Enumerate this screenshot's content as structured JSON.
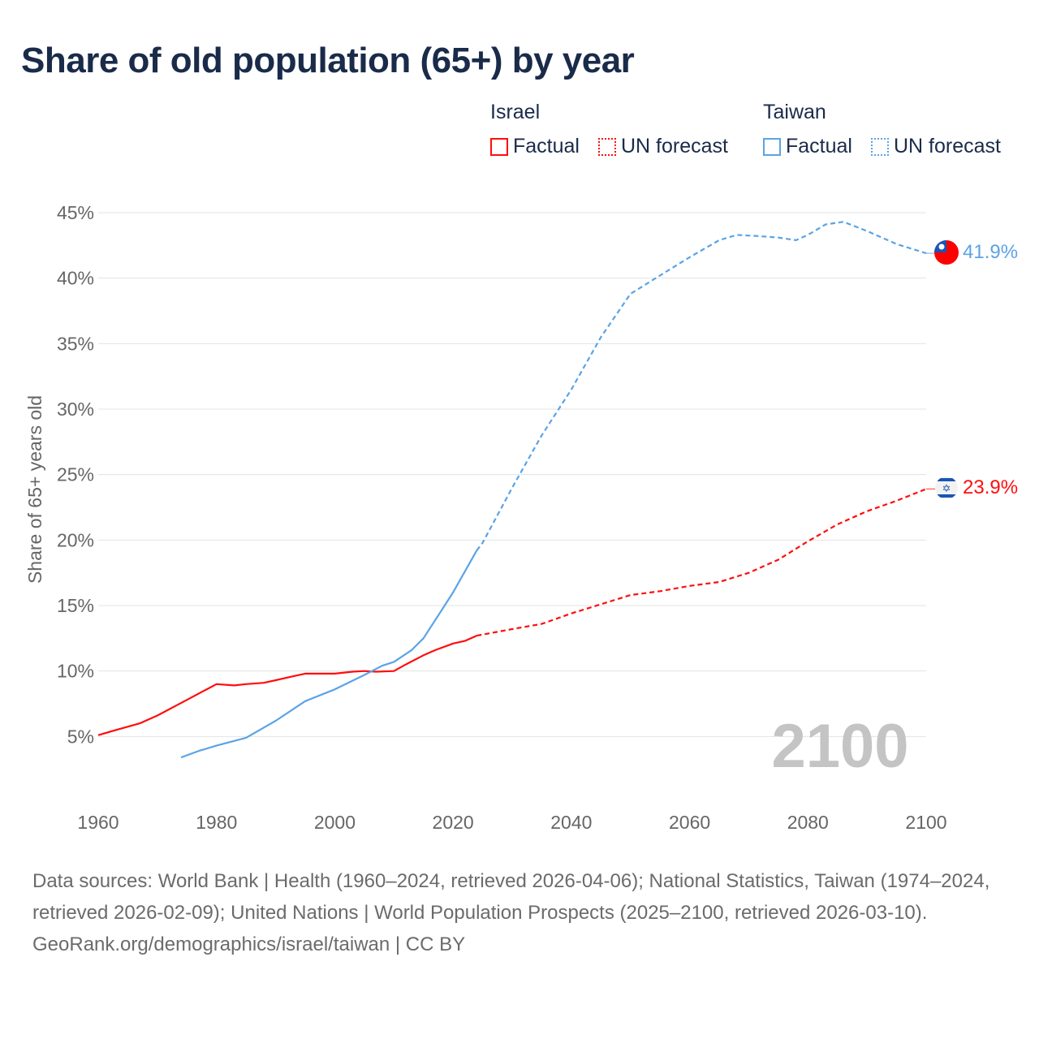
{
  "title": "Share of old population (65+) by year",
  "legend": {
    "groups": [
      {
        "name": "Israel",
        "factual": "Factual",
        "forecast": "UN forecast",
        "color": "#ff0d0d"
      },
      {
        "name": "Taiwan",
        "factual": "Factual",
        "forecast": "UN forecast",
        "color": "#5ba3e6"
      }
    ]
  },
  "chart_data": {
    "type": "line",
    "title": "Share of old population (65+) by year",
    "xlabel": "",
    "ylabel": "Share of 65+ years old",
    "xlim": [
      1960,
      2100
    ],
    "ylim": [
      0,
      45
    ],
    "x_ticks": [
      "1960",
      "1980",
      "2000",
      "2020",
      "2040",
      "2060",
      "2080",
      "2100"
    ],
    "y_ticks": [
      "5%",
      "10%",
      "15%",
      "20%",
      "25%",
      "30%",
      "35%",
      "40%",
      "45%"
    ],
    "grid": true,
    "year_label": "2100",
    "series": [
      {
        "name": "Israel",
        "color": "#ff0d0d",
        "end_label": "23.9%",
        "factual": {
          "x": [
            1960,
            1963,
            1967,
            1970,
            1975,
            1980,
            1983,
            1985,
            1988,
            1990,
            1993,
            1995,
            1998,
            2000,
            2003,
            2005,
            2007,
            2010,
            2012,
            2015,
            2017,
            2020,
            2022,
            2024
          ],
          "y": [
            5.1,
            5.5,
            6.0,
            6.6,
            7.8,
            9.0,
            8.9,
            9.0,
            9.1,
            9.3,
            9.6,
            9.8,
            9.8,
            9.8,
            9.95,
            10.0,
            9.95,
            10.0,
            10.5,
            11.2,
            11.6,
            12.1,
            12.3,
            12.7
          ]
        },
        "forecast": {
          "x": [
            2024,
            2030,
            2035,
            2040,
            2045,
            2050,
            2055,
            2060,
            2065,
            2070,
            2075,
            2080,
            2085,
            2090,
            2095,
            2100
          ],
          "y": [
            12.7,
            13.2,
            13.6,
            14.4,
            15.1,
            15.8,
            16.1,
            16.5,
            16.8,
            17.5,
            18.5,
            19.9,
            21.2,
            22.2,
            23.0,
            23.9
          ]
        }
      },
      {
        "name": "Taiwan",
        "color": "#5ba3e6",
        "end_label": "41.9%",
        "factual": {
          "x": [
            1974,
            1977,
            1980,
            1985,
            1990,
            1995,
            2000,
            2005,
            2008,
            2010,
            2013,
            2015,
            2018,
            2020,
            2022,
            2024
          ],
          "y": [
            3.4,
            3.9,
            4.3,
            4.9,
            6.2,
            7.7,
            8.6,
            9.7,
            10.4,
            10.7,
            11.6,
            12.5,
            14.6,
            16.0,
            17.6,
            19.2
          ]
        },
        "forecast": {
          "x": [
            2024,
            2025,
            2030,
            2035,
            2040,
            2045,
            2050,
            2055,
            2060,
            2065,
            2068,
            2072,
            2075,
            2078,
            2080,
            2083,
            2086,
            2090,
            2095,
            2100
          ],
          "y": [
            19.2,
            19.8,
            24.0,
            28.0,
            31.5,
            35.5,
            38.8,
            40.2,
            41.6,
            42.9,
            43.3,
            43.2,
            43.1,
            42.9,
            43.3,
            44.1,
            44.3,
            43.6,
            42.6,
            41.9
          ]
        }
      }
    ]
  },
  "footer": {
    "sources": "Data sources: World Bank | Health (1960–2024, retrieved 2026-04-06); National Statistics, Taiwan (1974–2024, retrieved 2026-02-09); United Nations | World Population Prospects (2025–2100, retrieved 2026-03-10).",
    "credit": "GeoRank.org/demographics/israel/taiwan | CC BY"
  }
}
